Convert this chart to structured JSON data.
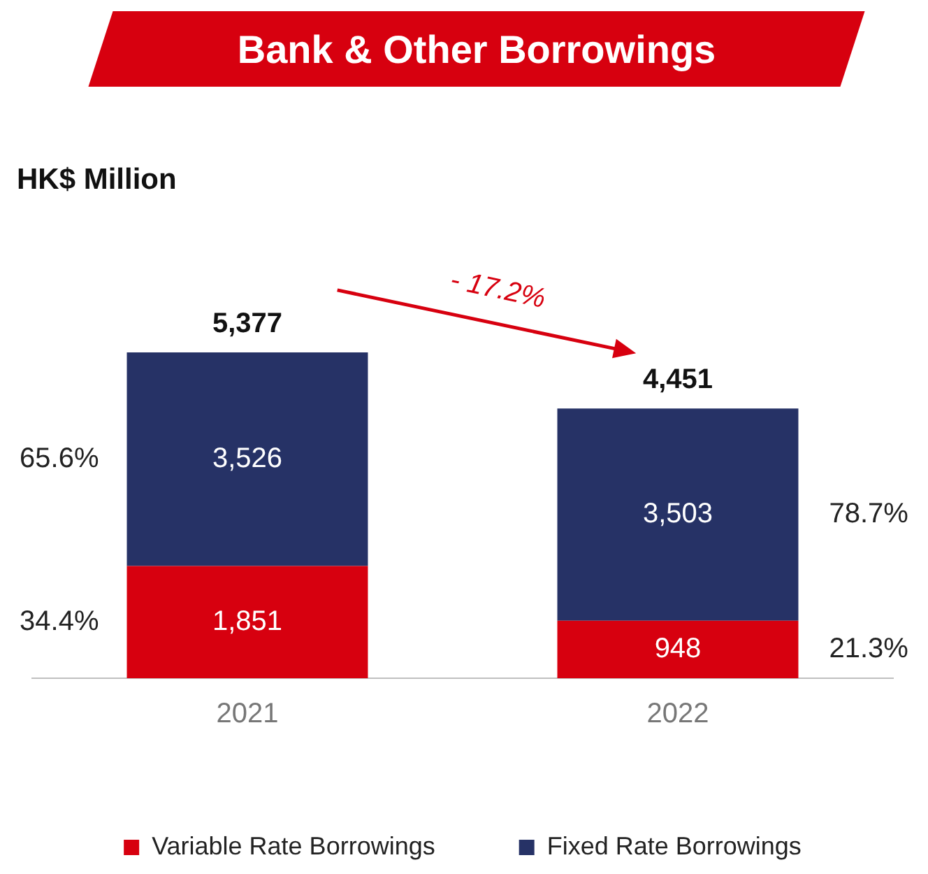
{
  "chart_data": {
    "type": "bar",
    "title": "Bank & Other Borrowings",
    "subtitle": "HK$ Million",
    "categories": [
      "2021",
      "2022"
    ],
    "stacked": true,
    "totals": [
      "5,377",
      "4,451"
    ],
    "legend": "bottom",
    "series": [
      {
        "name": "Variable Rate Borrowings",
        "color": "#d7000f",
        "values": [
          1851,
          948
        ],
        "value_labels": [
          "1,851",
          "948"
        ]
      },
      {
        "name": "Fixed Rate Borrowings",
        "color": "#263266",
        "values": [
          3526,
          3503
        ],
        "value_labels": [
          "3,526",
          "3,503"
        ]
      }
    ],
    "annotations": [
      "65.6%",
      "34.4%",
      "78.7%",
      "21.3%",
      "- 17.2%"
    ]
  }
}
